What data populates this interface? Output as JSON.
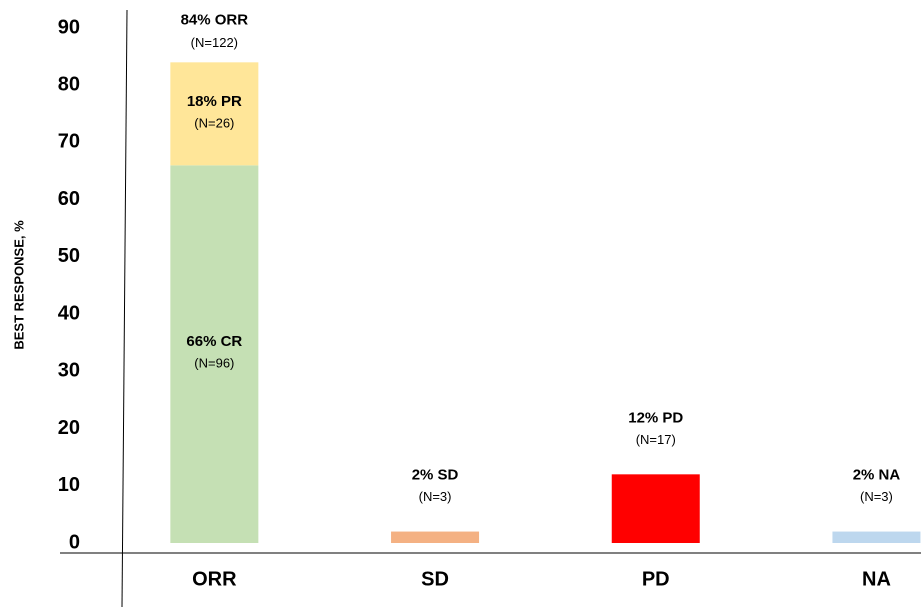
{
  "chart_data": {
    "type": "stacked_bar",
    "y_label": "BEST RESPONSE, %",
    "categories": [
      "ORR",
      "SD",
      "PD",
      "NA"
    ],
    "series": [
      {
        "colors": [
          "#c5e0b4",
          "#f4b183",
          "#ff0000",
          "#bdd7ee"
        ],
        "values": [
          66,
          2,
          12,
          2
        ],
        "value_labels": [
          "66% CR",
          "2% SD",
          "12% PD",
          "2% NA"
        ],
        "n_labels": [
          "(N=96)",
          "(N=3)",
          "(N=17)",
          "(N=3)"
        ]
      },
      {
        "colors": [
          "#ffe699",
          null,
          null,
          null
        ],
        "values": [
          18,
          null,
          null,
          null
        ],
        "value_labels": [
          "18% PR",
          null,
          null,
          null
        ],
        "n_labels": [
          "(N=26)",
          null,
          null,
          null
        ]
      }
    ],
    "total_label": "84% ORR",
    "total_n_label": "(N=122)",
    "ylim": [
      0,
      90
    ],
    "yticks": [
      0,
      10,
      20,
      30,
      40,
      50,
      60,
      70,
      80,
      90
    ]
  }
}
